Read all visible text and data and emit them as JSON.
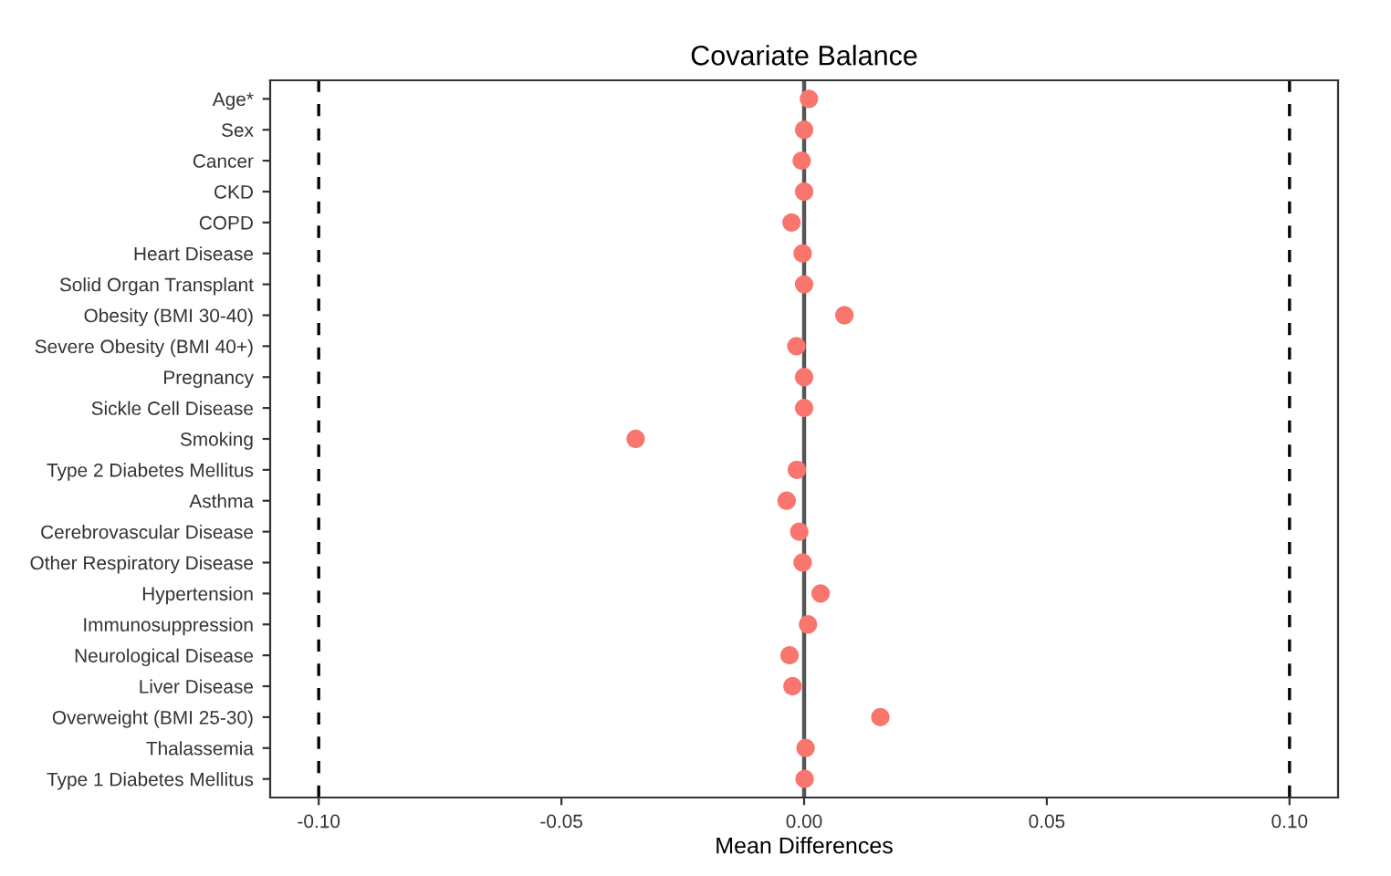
{
  "chart_data": {
    "type": "scatter",
    "title": "Covariate Balance",
    "xlabel": "Mean Differences",
    "orientation": "horizontal",
    "categories": [
      "Age*",
      "Sex",
      "Cancer",
      "CKD",
      "COPD",
      "Heart Disease",
      "Solid Organ Transplant",
      "Obesity (BMI 30-40)",
      "Severe Obesity (BMI 40+)",
      "Pregnancy",
      "Sickle Cell Disease",
      "Smoking",
      "Type 2 Diabetes Mellitus",
      "Asthma",
      "Cerebrovascular Disease",
      "Other Respiratory Disease",
      "Hypertension",
      "Immunosuppression",
      "Neurological Disease",
      "Liver Disease",
      "Overweight (BMI 25-30)",
      "Thalassemia",
      "Type 1 Diabetes Mellitus"
    ],
    "series": [
      {
        "color": "#f8766d",
        "values": [
          0.001,
          0.0,
          -0.0005,
          0.0,
          -0.0026,
          -0.0003,
          0.0,
          0.0083,
          -0.0016,
          0.0,
          0.0,
          -0.0347,
          -0.0015,
          -0.0036,
          -0.001,
          -0.0003,
          0.0034,
          0.0008,
          -0.003,
          -0.0024,
          0.0157,
          0.0003,
          0.0001
        ]
      }
    ],
    "xlim": [
      -0.11,
      0.11
    ],
    "xticks": [
      {
        "value": -0.1,
        "label": "-0.10"
      },
      {
        "value": -0.05,
        "label": "-0.05"
      },
      {
        "value": 0,
        "label": "0.00"
      },
      {
        "value": 0.05,
        "label": "0.05"
      },
      {
        "value": 0.1,
        "label": "0.10"
      }
    ],
    "ref_lines": [
      {
        "axis": "x",
        "value": -0.1,
        "line_style": "dashed",
        "color": "#000000"
      },
      {
        "axis": "x",
        "value": 0,
        "line_style": "solid",
        "color": "#555555"
      },
      {
        "axis": "x",
        "value": 0.1,
        "line_style": "dashed",
        "color": "#000000"
      }
    ],
    "marker": "circle",
    "grid": false,
    "legend": false
  }
}
